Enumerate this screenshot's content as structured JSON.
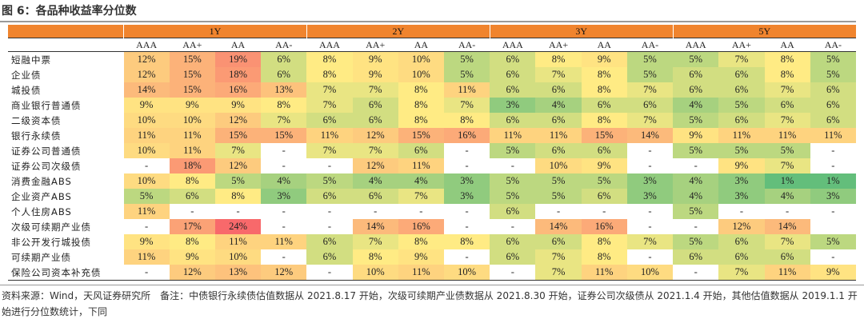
{
  "title": "图 6：各品种收益率分位数",
  "periods": [
    "1Y",
    "2Y",
    "3Y",
    "5Y"
  ],
  "ratings": [
    "AAA",
    "AA+",
    "AA",
    "AA-"
  ],
  "rows": [
    {
      "label": "短融中票",
      "values": [
        "12%",
        "15%",
        "19%",
        "6%",
        "8%",
        "9%",
        "10%",
        "5%",
        "6%",
        "8%",
        "9%",
        "5%",
        "5%",
        "7%",
        "8%",
        "5%"
      ]
    },
    {
      "label": "企业债",
      "values": [
        "12%",
        "15%",
        "18%",
        "6%",
        "8%",
        "9%",
        "10%",
        "5%",
        "6%",
        "7%",
        "8%",
        "5%",
        "6%",
        "6%",
        "8%",
        "5%"
      ]
    },
    {
      "label": "城投债",
      "values": [
        "14%",
        "15%",
        "16%",
        "13%",
        "7%",
        "7%",
        "8%",
        "11%",
        "6%",
        "6%",
        "8%",
        "7%",
        "6%",
        "6%",
        "7%",
        "6%"
      ]
    },
    {
      "label": "商业银行普通债",
      "values": [
        "9%",
        "9%",
        "9%",
        "8%",
        "7%",
        "6%",
        "8%",
        "7%",
        "3%",
        "4%",
        "6%",
        "6%",
        "4%",
        "5%",
        "6%",
        "6%"
      ]
    },
    {
      "label": "二级资本债",
      "values": [
        "10%",
        "10%",
        "12%",
        "7%",
        "6%",
        "6%",
        "8%",
        "8%",
        "6%",
        "6%",
        "8%",
        "7%",
        "5%",
        "6%",
        "7%",
        "6%"
      ]
    },
    {
      "label": "银行永续债",
      "values": [
        "11%",
        "11%",
        "15%",
        "15%",
        "11%",
        "12%",
        "15%",
        "16%",
        "11%",
        "11%",
        "15%",
        "14%",
        "9%",
        "11%",
        "11%",
        "11%"
      ]
    },
    {
      "label": "证券公司普通债",
      "values": [
        "10%",
        "11%",
        "7%",
        "-",
        "7%",
        "7%",
        "6%",
        "-",
        "5%",
        "6%",
        "6%",
        "-",
        "5%",
        "5%",
        "5%",
        "-"
      ]
    },
    {
      "label": "证券公司次级债",
      "values": [
        "-",
        "18%",
        "12%",
        "-",
        "-",
        "12%",
        "11%",
        "-",
        "-",
        "10%",
        "9%",
        "-",
        "-",
        "9%",
        "7%",
        "-"
      ]
    },
    {
      "label": "消费金融ABS",
      "values": [
        "10%",
        "8%",
        "5%",
        "4%",
        "5%",
        "4%",
        "4%",
        "3%",
        "5%",
        "5%",
        "5%",
        "3%",
        "4%",
        "3%",
        "1%",
        "1%"
      ]
    },
    {
      "label": "企业资产ABS",
      "values": [
        "5%",
        "6%",
        "8%",
        "3%",
        "6%",
        "6%",
        "7%",
        "3%",
        "5%",
        "5%",
        "6%",
        "3%",
        "4%",
        "3%",
        "4%",
        "3%"
      ]
    },
    {
      "label": "个人住房ABS",
      "values": [
        "11%",
        "-",
        "-",
        "-",
        "-",
        "-",
        "-",
        "-",
        "6%",
        "-",
        "-",
        "-",
        "5%",
        "-",
        "-",
        "-"
      ]
    },
    {
      "label": "次级可续期产业债",
      "values": [
        "-",
        "17%",
        "24%",
        "-",
        "-",
        "14%",
        "16%",
        "-",
        "-",
        "14%",
        "16%",
        "-",
        "-",
        "12%",
        "14%",
        ""
      ]
    },
    {
      "label": "非公开发行城投债",
      "values": [
        "9%",
        "8%",
        "11%",
        "11%",
        "6%",
        "7%",
        "8%",
        "8%",
        "6%",
        "6%",
        "8%",
        "7%",
        "5%",
        "6%",
        "7%",
        "5%"
      ]
    },
    {
      "label": "可续期产业债",
      "values": [
        "11%",
        "9%",
        "10%",
        "-",
        "6%",
        "8%",
        "9%",
        "-",
        "6%",
        "7%",
        "8%",
        "-",
        "6%",
        "6%",
        "6%",
        "-"
      ]
    },
    {
      "label": "保险公司资本补充债",
      "values": [
        "-",
        "12%",
        "13%",
        "12%",
        "-",
        "10%",
        "11%",
        "10%",
        "-",
        "7%",
        "11%",
        "10%",
        "-",
        "7%",
        "11%",
        "9%"
      ]
    }
  ],
  "colors": {
    "header": "#f0842e",
    "scale_low": "#63be7b",
    "scale_mid": "#ffeb84",
    "scale_high": "#f8696b"
  },
  "note": "资料来源：Wind，天风证券研究所　备注：中债银行永续债估值数据从 2021.8.17 开始，次级可续期产业债数据从 2021.8.30 开始，证券公司次级债从 2021.1.4 开始，其他估值数据从 2019.1.1 开始进行分位数统计，下同"
}
